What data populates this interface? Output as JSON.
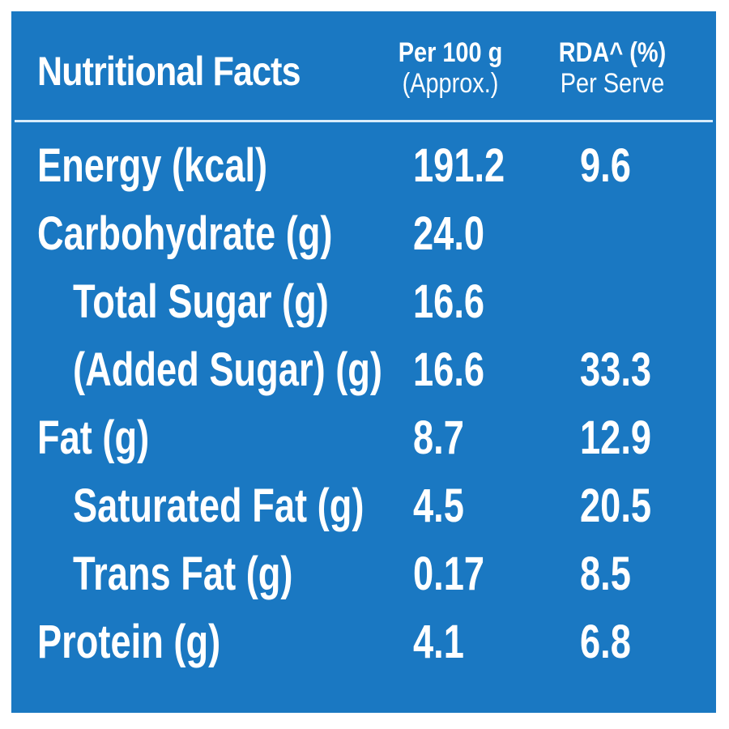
{
  "title": "Nutritional Facts",
  "columns": {
    "per100": {
      "line1": "Per 100 g",
      "line2": "(Approx.)"
    },
    "rda": {
      "line1": "RDA^ (%)",
      "line2": "Per Serve"
    }
  },
  "rows": [
    {
      "name": "Energy (kcal)",
      "per100": "191.2",
      "rda": "9.6"
    },
    {
      "name": "Carbohydrate (g)",
      "per100": "24.0",
      "rda": ""
    },
    {
      "name": "Total Sugar (g)",
      "per100": "16.6",
      "rda": ""
    },
    {
      "name": "(Added Sugar) (g)",
      "per100": "16.6",
      "rda": "33.3"
    },
    {
      "name": "Fat (g)",
      "per100": "8.7",
      "rda": "12.9"
    },
    {
      "name": "Saturated Fat (g)",
      "per100": "4.5",
      "rda": "20.5"
    },
    {
      "name": "Trans Fat (g)",
      "per100": "0.17",
      "rda": "8.5"
    },
    {
      "name": "Protein (g)",
      "per100": "4.1",
      "rda": "6.8"
    }
  ],
  "colors": {
    "background": "#1a78c2",
    "text": "#ffffff",
    "divider": "#d8ecfb"
  }
}
